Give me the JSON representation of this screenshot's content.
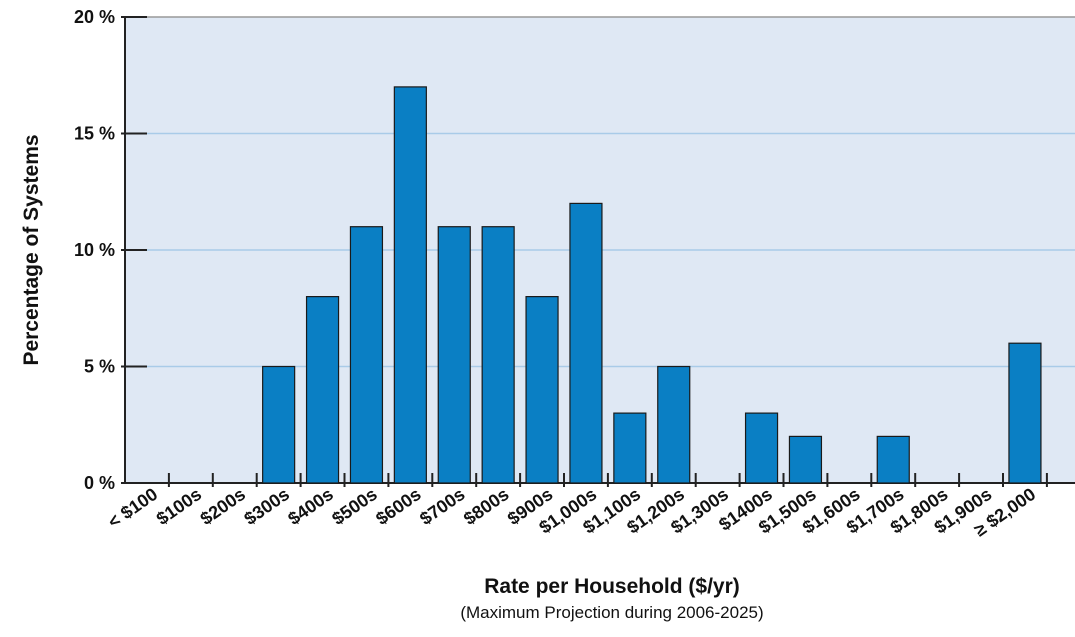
{
  "chart_data": {
    "type": "bar",
    "x_label": "Rate per Household ($/yr)",
    "x_sublabel": "(Maximum Projection during 2006-2025)",
    "y_label": "Percentage of Systems",
    "categories": [
      "< $100",
      "$100s",
      "$200s",
      "$300s",
      "$400s",
      "$500s",
      "$600s",
      "$700s",
      "$800s",
      "$900s",
      "$1,000s",
      "$1,100s",
      "$1,200s",
      "$1,300s",
      "$1400s",
      "$1,500s",
      "$1,600s",
      "$1,700s",
      "$1,800s",
      "$1,900s",
      "≥ $2,000"
    ],
    "values": [
      0,
      0,
      0,
      5,
      8,
      11,
      17,
      11,
      11,
      8,
      12,
      3,
      5,
      0,
      3,
      2,
      0,
      2,
      0,
      0,
      6
    ],
    "color": "#0a7fc4",
    "ylim": [
      0,
      20
    ],
    "yticks": [
      {
        "value": 0,
        "label": "0 %"
      },
      {
        "value": 5,
        "label": "5 %"
      },
      {
        "value": 10,
        "label": "10 %"
      },
      {
        "value": 15,
        "label": "15 %"
      },
      {
        "value": 20,
        "label": "20 %"
      }
    ],
    "grid": true
  }
}
